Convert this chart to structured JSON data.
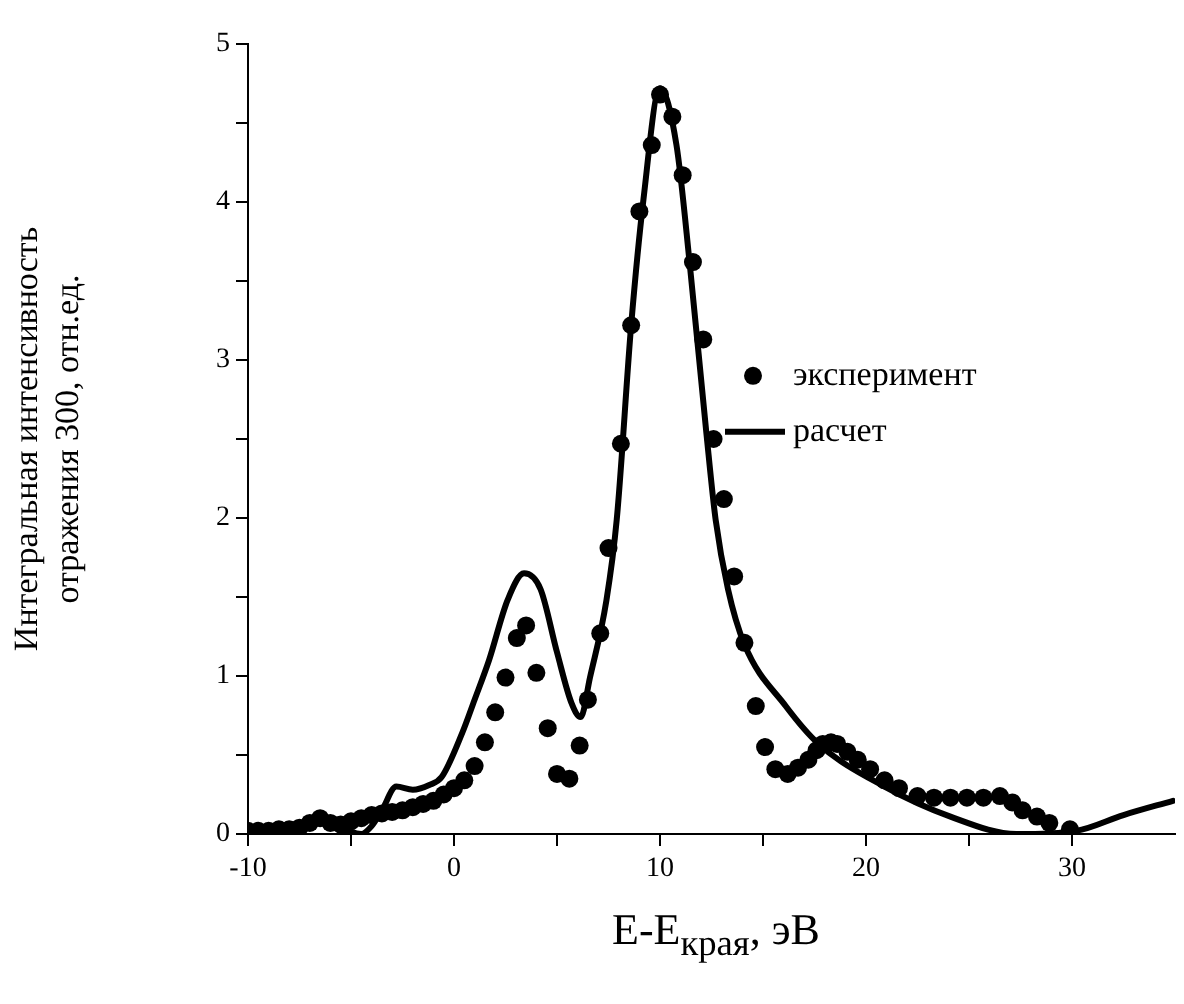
{
  "chart_data": {
    "type": "scatter",
    "xlabel": "E-E$_{края}$, эВ",
    "ylabel": "Интегральная интенсивность\nотражения 300, отн.ед.",
    "xlim": [
      -10,
      35
    ],
    "xticks": [
      -10,
      {
        "value": -5,
        "label": null
      },
      0,
      {
        "value": 5,
        "label": null
      },
      10,
      {
        "value": 15,
        "label": null
      },
      20,
      {
        "value": 25,
        "label": null
      },
      30
    ],
    "ylim": [
      0,
      5
    ],
    "yticks": [
      0,
      {
        "value": 0.5,
        "label": null
      },
      1,
      {
        "value": 1.5,
        "label": null
      },
      2,
      {
        "value": 2.5,
        "label": null
      },
      3,
      {
        "value": 3.5,
        "label": null
      },
      4,
      {
        "value": 4.5,
        "label": null
      },
      5
    ],
    "grid": false,
    "legend": "right",
    "series": [
      {
        "name": "эксперимент",
        "marker": "circle",
        "color": "#000000",
        "x": [
          -10,
          -9.5,
          -9,
          -8.5,
          -8,
          -7.5,
          -7,
          -6.5,
          -6,
          -5.5,
          -5,
          -4.5,
          -4,
          -3.5,
          -3,
          -2.5,
          -2,
          -1.5,
          -1,
          -0.5,
          0,
          0.5,
          1,
          1.5,
          2,
          2.5,
          3.05,
          3.5,
          4,
          4.55,
          5,
          5.6,
          6.1,
          6.5,
          7.1,
          7.5,
          8.1,
          8.6,
          9,
          9.6,
          10,
          10.6,
          11.1,
          11.6,
          12.1,
          12.6,
          13.1,
          13.6,
          14.1,
          14.65,
          15.1,
          15.6,
          16.2,
          16.7,
          17.2,
          17.6,
          17.9,
          18.3,
          18.6,
          19.1,
          19.6,
          20.2,
          20.9,
          21.6,
          22.5,
          23.3,
          24.1,
          24.9,
          25.7,
          26.5,
          27.1,
          27.6,
          28.3,
          28.9,
          29.9
        ],
        "values": [
          0.02,
          0.02,
          0.02,
          0.03,
          0.03,
          0.04,
          0.07,
          0.1,
          0.07,
          0.06,
          0.08,
          0.1,
          0.12,
          0.13,
          0.14,
          0.15,
          0.17,
          0.19,
          0.21,
          0.25,
          0.29,
          0.34,
          0.43,
          0.58,
          0.77,
          0.99,
          1.24,
          1.32,
          1.02,
          0.67,
          0.38,
          0.35,
          0.56,
          0.85,
          1.27,
          1.81,
          2.47,
          3.22,
          3.94,
          4.36,
          4.68,
          4.54,
          4.17,
          3.62,
          3.13,
          2.5,
          2.12,
          1.63,
          1.21,
          0.81,
          0.55,
          0.41,
          0.38,
          0.42,
          0.47,
          0.53,
          0.57,
          0.58,
          0.57,
          0.52,
          0.47,
          0.41,
          0.34,
          0.29,
          0.24,
          0.23,
          0.23,
          0.23,
          0.23,
          0.24,
          0.2,
          0.15,
          0.11,
          0.07,
          0.03
        ]
      },
      {
        "name": "расчет",
        "type": "line",
        "marker": "none",
        "color": "#000000",
        "x": [
          -10,
          -8,
          -7.3,
          -6.7,
          -6,
          -5.2,
          -4.5,
          -4,
          -3.5,
          -2.8,
          -2,
          -1.2,
          -0.6,
          0.4,
          1,
          1.7,
          2.6,
          3.4,
          4.2,
          5,
          5.7,
          6.15,
          6.6,
          7.4,
          7.9,
          8.6,
          9.2,
          10,
          10.8,
          11.45,
          12.25,
          12.7,
          13.3,
          14.1,
          16.1,
          17.7,
          20.9,
          24.1,
          27.3,
          30.2,
          32.5,
          34.9
        ],
        "values": [
          0.01,
          0.02,
          0.04,
          0.09,
          0.05,
          0.02,
          0,
          0.05,
          0.15,
          0.3,
          0.28,
          0.31,
          0.36,
          0.64,
          0.85,
          1.1,
          1.48,
          1.65,
          1.55,
          1.15,
          0.83,
          0.74,
          0.99,
          1.48,
          1.99,
          3.22,
          4.02,
          4.72,
          4.36,
          3.6,
          2.54,
          1.99,
          1.55,
          1.2,
          0.81,
          0.57,
          0.3,
          0.11,
          0,
          0.02,
          0.12,
          0.21
        ]
      }
    ]
  }
}
